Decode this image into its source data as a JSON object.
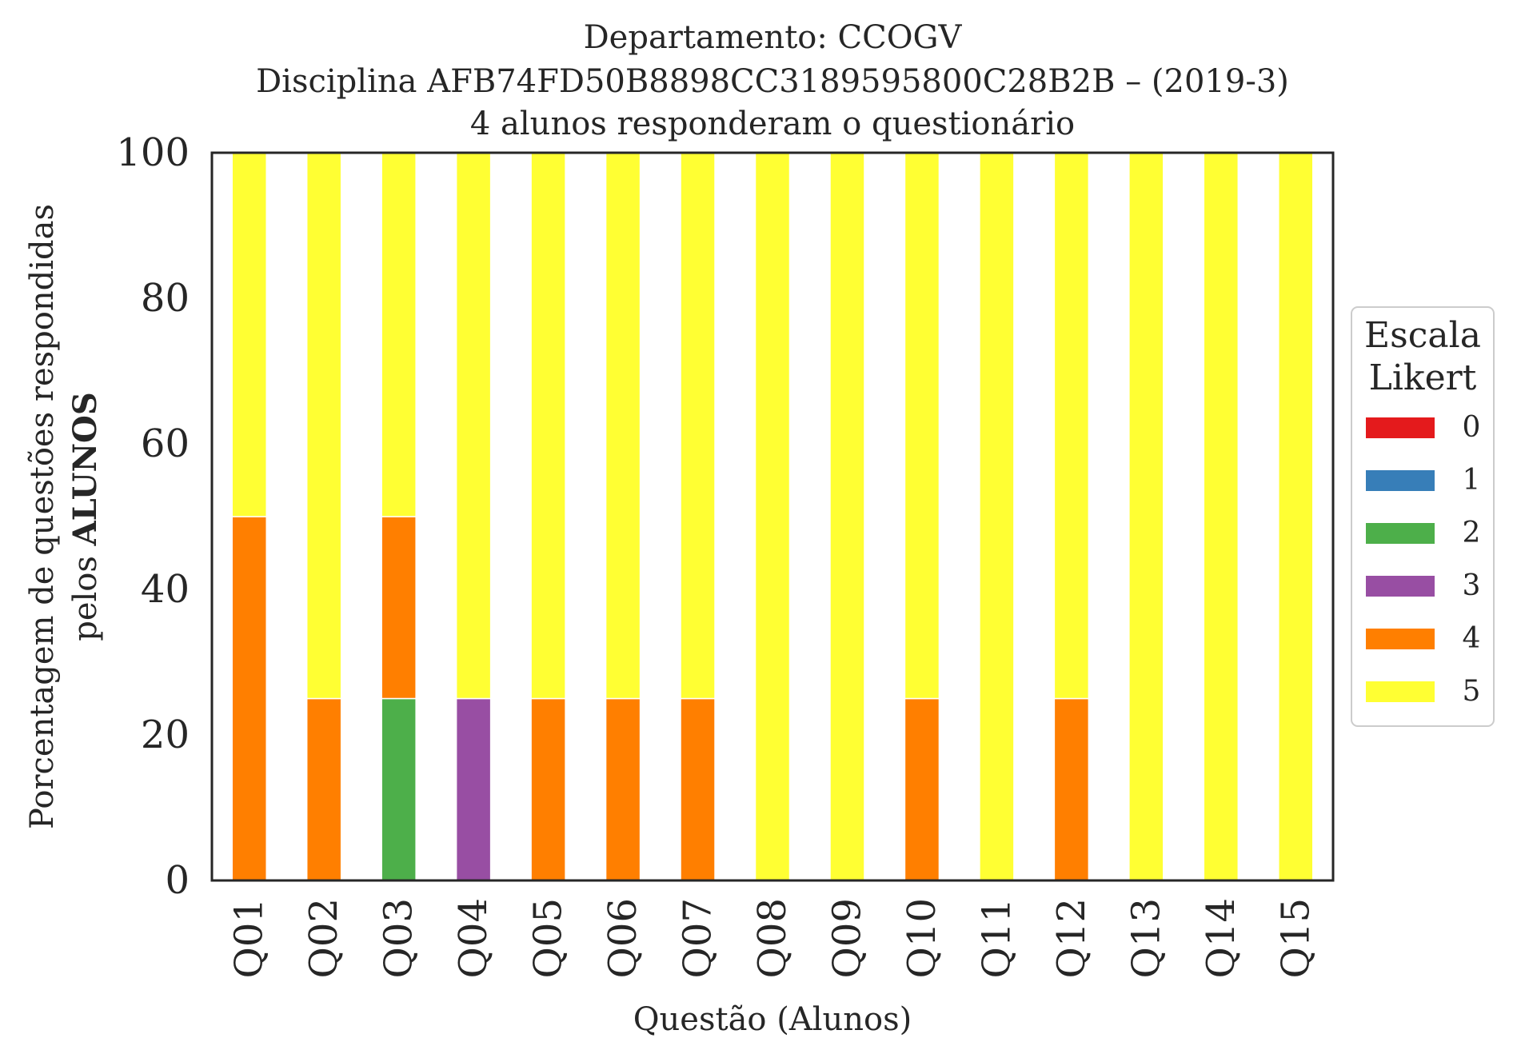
{
  "chart_data": {
    "type": "bar",
    "stacked": true,
    "title": [
      "Departamento: CCOGV",
      "Disciplina AFB74FD50B8898CC3189595800C28B2B – (2019-3)",
      "4 alunos responderam o questionário"
    ],
    "xlabel": "Questão (Alunos)",
    "ylabel_line1": "Porcentagem de questões respondidas",
    "ylabel_line2_prefix": "pelos",
    "ylabel_line2_bold": "ALUNOS",
    "ylim": [
      0,
      100
    ],
    "yticks": [
      "0",
      "20",
      "40",
      "60",
      "80",
      "100"
    ],
    "grid": false,
    "legend_position": "center-right",
    "legend_title": [
      "Escala",
      "Likert"
    ],
    "categories": [
      "Q01",
      "Q02",
      "Q03",
      "Q04",
      "Q05",
      "Q06",
      "Q07",
      "Q08",
      "Q09",
      "Q10",
      "Q11",
      "Q12",
      "Q13",
      "Q14",
      "Q15"
    ],
    "series": [
      {
        "name": "0",
        "color": "#e41a1c",
        "values": [
          0,
          0,
          0,
          0,
          0,
          0,
          0,
          0,
          0,
          0,
          0,
          0,
          0,
          0,
          0
        ]
      },
      {
        "name": "1",
        "color": "#377eb8",
        "values": [
          0,
          0,
          0,
          0,
          0,
          0,
          0,
          0,
          0,
          0,
          0,
          0,
          0,
          0,
          0
        ]
      },
      {
        "name": "2",
        "color": "#4daf4a",
        "values": [
          0,
          0,
          25,
          0,
          0,
          0,
          0,
          0,
          0,
          0,
          0,
          0,
          0,
          0,
          0
        ]
      },
      {
        "name": "3",
        "color": "#984ea3",
        "values": [
          0,
          0,
          0,
          25,
          0,
          0,
          0,
          0,
          0,
          0,
          0,
          0,
          0,
          0,
          0
        ]
      },
      {
        "name": "4",
        "color": "#ff7f00",
        "values": [
          50,
          25,
          25,
          0,
          25,
          25,
          25,
          0,
          0,
          25,
          0,
          25,
          0,
          0,
          0
        ]
      },
      {
        "name": "5",
        "color": "#ffff33",
        "values": [
          50,
          75,
          50,
          75,
          75,
          75,
          75,
          100,
          100,
          75,
          100,
          75,
          100,
          100,
          100
        ]
      }
    ]
  }
}
